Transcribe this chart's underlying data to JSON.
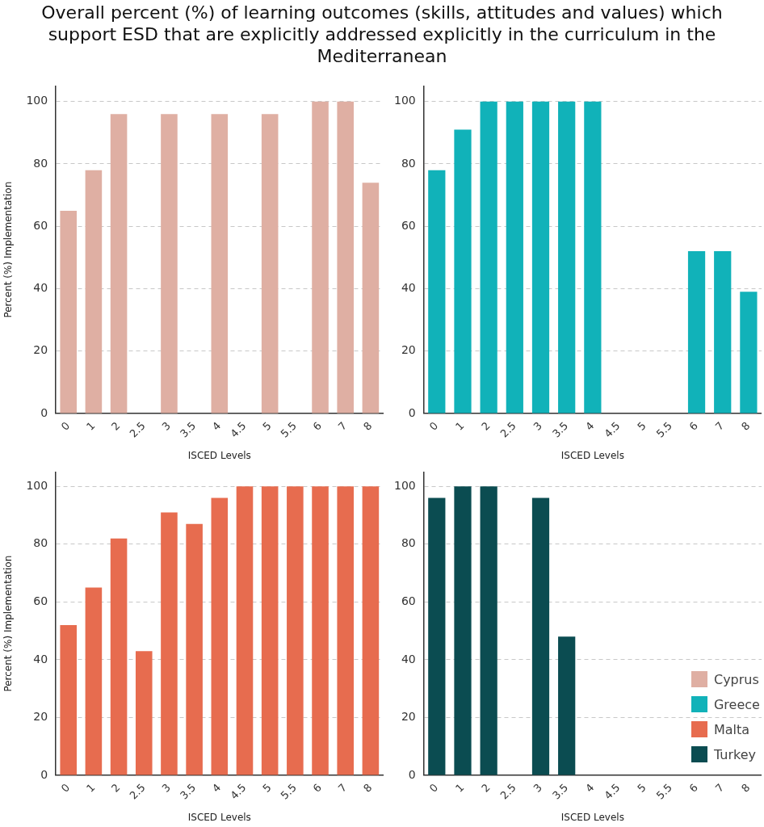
{
  "chart_data": [
    {
      "type": "bar",
      "title": "Overall percent (%) of learning outcomes (skills, attitudes and values) which support ESD that are explicitly addressed explicitly in the curriculum in the Mediterranean",
      "xlabel": "ISCED Levels",
      "ylabel": "Percent (%) Implementation",
      "categories": [
        "0",
        "1",
        "2",
        "2.5",
        "3",
        "3.5",
        "4",
        "4.5",
        "5",
        "5.5",
        "6",
        "7",
        "8"
      ],
      "series": [
        {
          "name": "Cyprus",
          "color": "#dfafa3",
          "values": [
            65,
            78,
            96,
            null,
            96,
            null,
            96,
            null,
            96,
            null,
            100,
            100,
            74
          ]
        }
      ],
      "ylim": [
        0,
        105
      ],
      "yticks": [
        0,
        20,
        40,
        60,
        80,
        100
      ],
      "grid": "y",
      "legend": "bottom right"
    },
    {
      "type": "bar",
      "xlabel": "ISCED Levels",
      "categories": [
        "0",
        "1",
        "2",
        "2.5",
        "3",
        "3.5",
        "4",
        "4.5",
        "5",
        "5.5",
        "6",
        "7",
        "8"
      ],
      "series": [
        {
          "name": "Greece",
          "color": "#11b2b9",
          "values": [
            78,
            91,
            100,
            100,
            100,
            100,
            100,
            null,
            null,
            null,
            52,
            52,
            39
          ]
        }
      ],
      "ylim": [
        0,
        105
      ],
      "yticks": [
        0,
        20,
        40,
        60,
        80,
        100
      ],
      "grid": "y",
      "legend": "bottom right"
    },
    {
      "type": "bar",
      "xlabel": "ISCED Levels",
      "ylabel": "Percent (%) Implementation",
      "categories": [
        "0",
        "1",
        "2",
        "2.5",
        "3",
        "3.5",
        "4",
        "4.5",
        "5",
        "5.5",
        "6",
        "7",
        "8"
      ],
      "series": [
        {
          "name": "Malta",
          "color": "#e76c4f",
          "values": [
            52,
            65,
            82,
            43,
            91,
            87,
            96,
            100,
            100,
            100,
            100,
            100,
            100
          ]
        }
      ],
      "ylim": [
        0,
        105
      ],
      "yticks": [
        0,
        20,
        40,
        60,
        80,
        100
      ],
      "grid": "y",
      "legend": "bottom right"
    },
    {
      "type": "bar",
      "xlabel": "ISCED Levels",
      "categories": [
        "0",
        "1",
        "2",
        "2.5",
        "3",
        "3.5",
        "4",
        "4.5",
        "5",
        "5.5",
        "6",
        "7",
        "8"
      ],
      "series": [
        {
          "name": "Turkey",
          "color": "#0b4c51",
          "values": [
            96,
            100,
            100,
            null,
            96,
            48,
            null,
            null,
            null,
            null,
            null,
            null,
            null
          ]
        }
      ],
      "ylim": [
        0,
        105
      ],
      "yticks": [
        0,
        20,
        40,
        60,
        80,
        100
      ],
      "grid": "y",
      "legend": "bottom right"
    }
  ]
}
